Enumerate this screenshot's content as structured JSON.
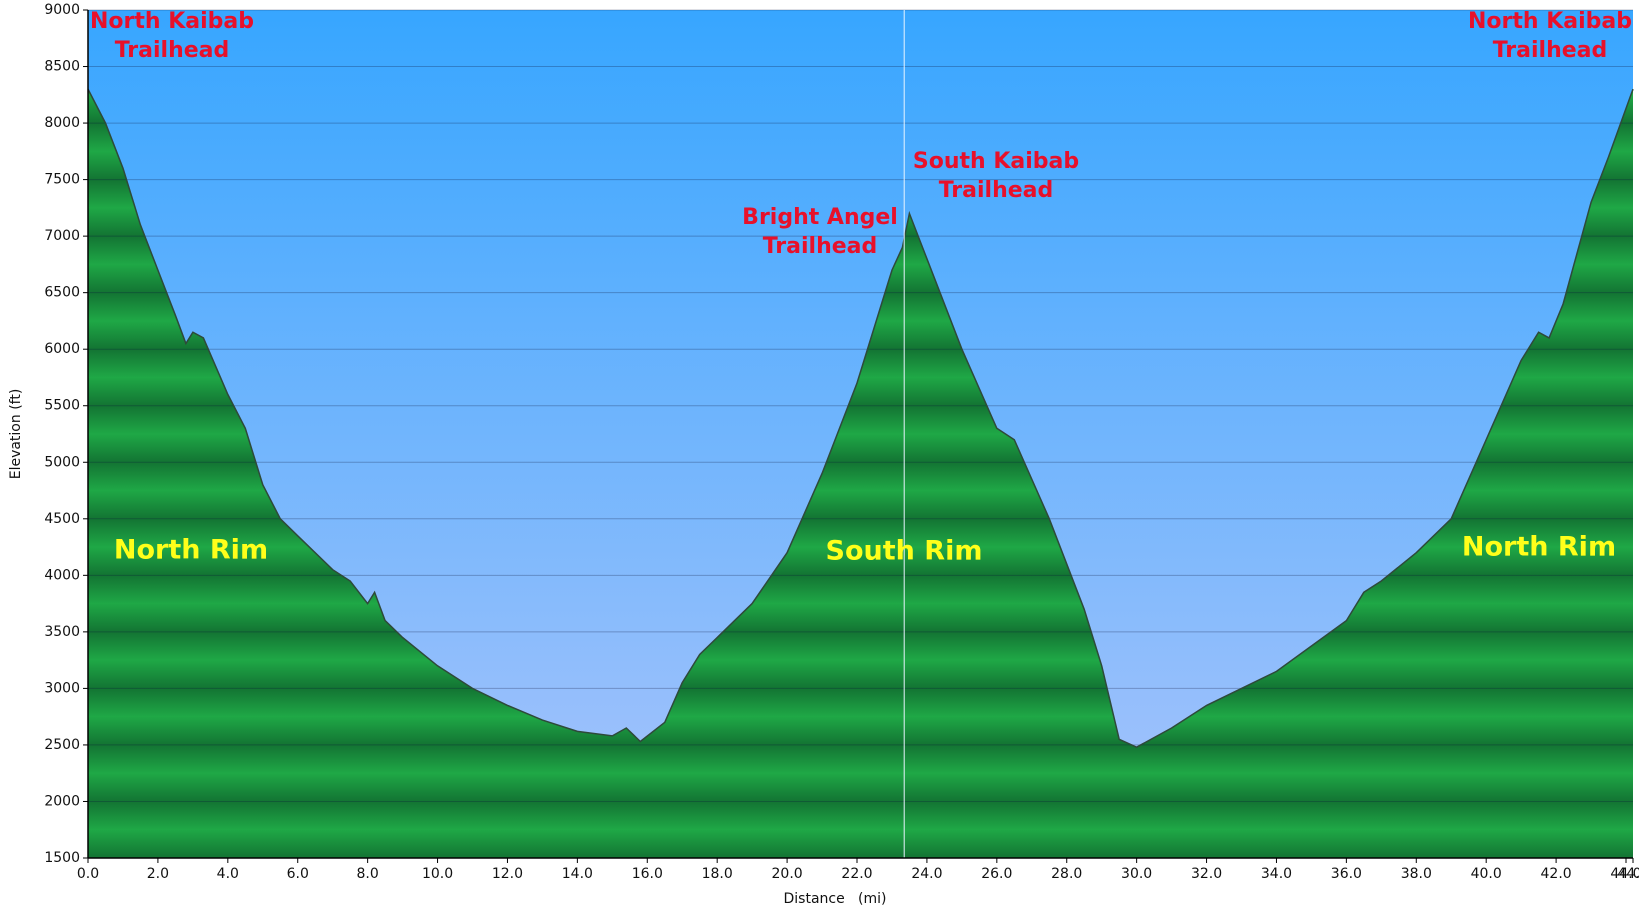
{
  "chart_data": {
    "type": "area",
    "x_label": "Distance   (mi)",
    "y_label": "Elevation (ft)",
    "x": [
      0,
      0.5,
      1.0,
      1.5,
      2.0,
      2.5,
      2.8,
      3.0,
      3.3,
      4.0,
      4.5,
      5.0,
      5.5,
      6.0,
      7.0,
      7.5,
      8.0,
      8.2,
      8.5,
      9.0,
      10.0,
      11.0,
      12.0,
      13.0,
      14.0,
      15.0,
      15.4,
      15.8,
      16.5,
      17.0,
      17.5,
      18.0,
      19.0,
      20.0,
      21.0,
      22.0,
      22.5,
      23.0,
      23.3,
      23.5,
      24.0,
      25.0,
      26.0,
      26.5,
      27.5,
      28.5,
      29.0,
      29.5,
      30.0,
      31.0,
      32.0,
      34.0,
      36.0,
      36.5,
      37.0,
      38.0,
      39.0,
      40.0,
      41.0,
      41.5,
      41.8,
      42.2,
      43.0,
      43.5,
      44.2
    ],
    "values": [
      8300,
      8000,
      7600,
      7100,
      6700,
      6300,
      6050,
      6150,
      6100,
      5600,
      5300,
      4800,
      4500,
      4350,
      4050,
      3950,
      3750,
      3850,
      3600,
      3450,
      3200,
      3000,
      2850,
      2720,
      2620,
      2580,
      2650,
      2530,
      2700,
      3050,
      3300,
      3450,
      3750,
      4200,
      4900,
      5700,
      6200,
      6700,
      6900,
      7200,
      6800,
      6000,
      5300,
      5200,
      4500,
      3700,
      3200,
      2550,
      2480,
      2650,
      2850,
      3150,
      3600,
      3850,
      3950,
      4200,
      4500,
      5200,
      5900,
      6150,
      6100,
      6400,
      7300,
      7700,
      8300
    ],
    "xlim": [
      0,
      44.2
    ],
    "ylim": [
      1500,
      9000
    ],
    "xticks": [
      {
        "value": 0,
        "label": "0.0"
      },
      {
        "value": 2,
        "label": "2.0"
      },
      {
        "value": 4,
        "label": "4.0"
      },
      {
        "value": 6,
        "label": "6.0"
      },
      {
        "value": 8,
        "label": "8.0"
      },
      {
        "value": 10,
        "label": "10.0"
      },
      {
        "value": 12,
        "label": "12.0"
      },
      {
        "value": 14,
        "label": "14.0"
      },
      {
        "value": 16,
        "label": "16.0"
      },
      {
        "value": 18,
        "label": "18.0"
      },
      {
        "value": 20,
        "label": "20.0"
      },
      {
        "value": 22,
        "label": "22.0"
      },
      {
        "value": 24,
        "label": "24.0"
      },
      {
        "value": 26,
        "label": "26.0"
      },
      {
        "value": 28,
        "label": "28.0"
      },
      {
        "value": 30,
        "label": "30.0"
      },
      {
        "value": 32,
        "label": "32.0"
      },
      {
        "value": 34,
        "label": "34.0"
      },
      {
        "value": 36,
        "label": "36.0"
      },
      {
        "value": 38,
        "label": "38.0"
      },
      {
        "value": 40,
        "label": "40.0"
      },
      {
        "value": 42,
        "label": "42.0"
      },
      {
        "value": 44,
        "label": "44.0"
      },
      44.2
    ],
    "yticks": [
      1500,
      2000,
      2500,
      3000,
      3500,
      4000,
      4500,
      5000,
      5500,
      6000,
      6500,
      7000,
      7500,
      8000,
      8500,
      9000
    ],
    "grid": true,
    "marker_x": 23.35,
    "color": "#1fa846",
    "annotations": [
      {
        "lines": [
          "North Kaibab",
          "Trailhead"
        ]
      },
      {
        "lines": [
          "Bright Angel",
          "Trailhead"
        ]
      },
      {
        "lines": [
          "South Kaibab",
          "Trailhead"
        ]
      },
      {
        "lines": [
          "North Kaibab",
          "Trailhead"
        ]
      }
    ],
    "regions": [
      "North Rim",
      "South Rim",
      "North Rim"
    ]
  }
}
